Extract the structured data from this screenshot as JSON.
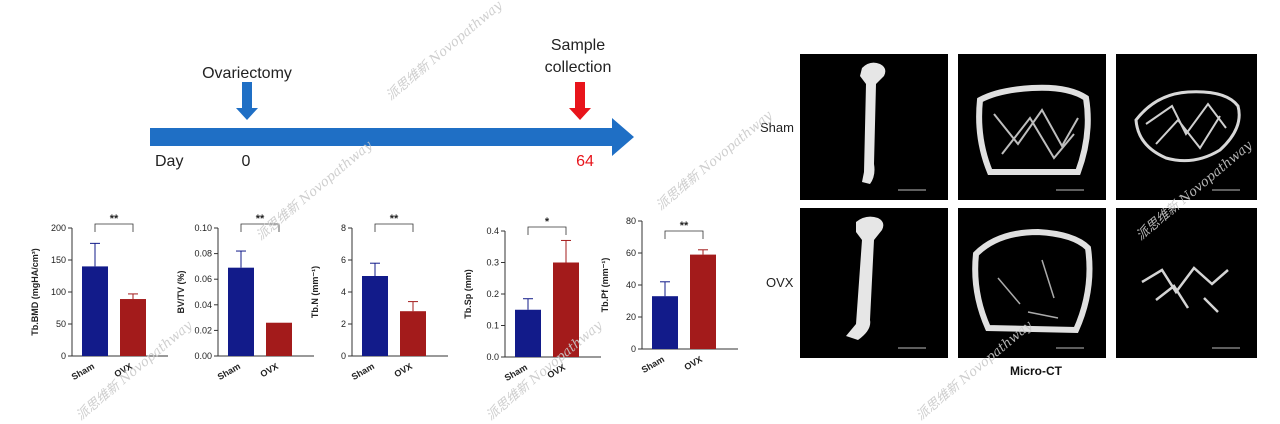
{
  "timeline": {
    "event1_label": "Ovariectomy",
    "event2_line1": "Sample",
    "event2_line2": "collection",
    "day_label": "Day",
    "day_start": "0",
    "day_end": "64",
    "arrow_color": "#1f6fc5",
    "marker1_color": "#1f6fc5",
    "marker2_color": "#e8141b",
    "day_end_color": "#e8141b"
  },
  "colors": {
    "sham": "#121b8a",
    "ovx": "#a31b1b"
  },
  "chart_data": [
    {
      "type": "bar",
      "categories": [
        "Sham",
        "OVX"
      ],
      "values": [
        140,
        89
      ],
      "errors": [
        36,
        8
      ],
      "ylabel": "Tb.BMD (mgHA/cm³)",
      "ylim": [
        0,
        200
      ],
      "yticks": [
        "0",
        "50",
        "100",
        "150",
        "200"
      ],
      "significance": "**"
    },
    {
      "type": "bar",
      "categories": [
        "Sham",
        "OVX"
      ],
      "values": [
        0.069,
        0.026
      ],
      "errors": [
        0.013,
        0
      ],
      "ylabel": "BV/TV (%)",
      "ylim": [
        0,
        0.1
      ],
      "yticks": [
        "0.00",
        "0.02",
        "0.04",
        "0.06",
        "0.08",
        "0.10"
      ],
      "significance": "**"
    },
    {
      "type": "bar",
      "categories": [
        "Sham",
        "OVX"
      ],
      "values": [
        5.0,
        2.8
      ],
      "errors": [
        0.8,
        0.6
      ],
      "ylabel": "Tb.N (mm⁻¹)",
      "ylim": [
        0,
        8
      ],
      "yticks": [
        "0",
        "2",
        "4",
        "6",
        "8"
      ],
      "significance": "**"
    },
    {
      "type": "bar",
      "categories": [
        "Sham",
        "OVX"
      ],
      "values": [
        0.15,
        0.3
      ],
      "errors": [
        0.035,
        0.07
      ],
      "ylabel": "Tb.Sp (mm)",
      "ylim": [
        0,
        0.4
      ],
      "yticks": [
        "0.0",
        "0.1",
        "0.2",
        "0.3",
        "0.4"
      ],
      "significance": "*"
    },
    {
      "type": "bar",
      "categories": [
        "Sham",
        "OVX"
      ],
      "values": [
        33,
        59
      ],
      "errors": [
        9,
        3
      ],
      "ylabel": "Tb.Pf (mm⁻¹)",
      "ylim": [
        0,
        80
      ],
      "yticks": [
        "0",
        "20",
        "40",
        "60",
        "80"
      ],
      "significance": "**"
    }
  ],
  "microct": {
    "title": "Micro-CT",
    "row_labels": [
      "Sham",
      "OVX"
    ]
  },
  "watermark": {
    "cn": "派思维新",
    "en": "Novopathway"
  }
}
